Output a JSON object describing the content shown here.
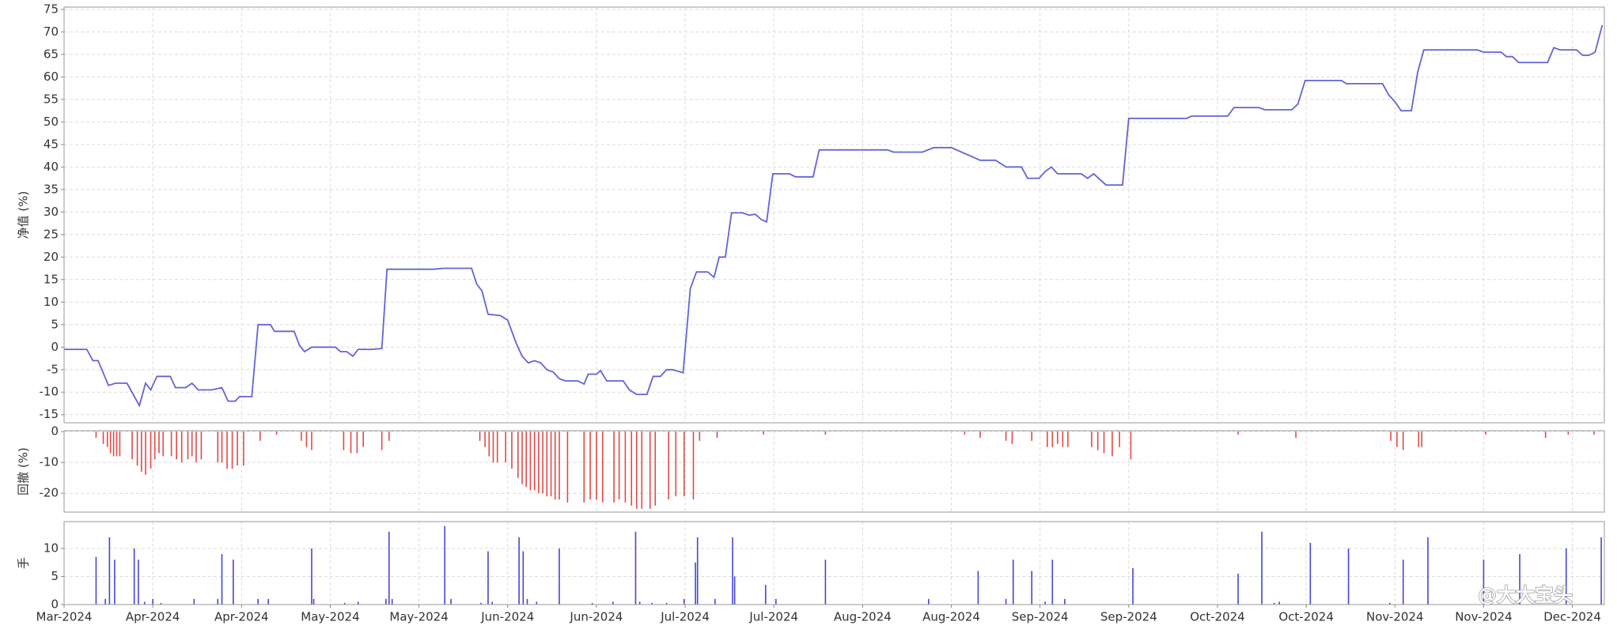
{
  "chart_data": [
    {
      "type": "line",
      "ylabel": "净值 (%)",
      "ylim": [
        -16.8,
        75.5
      ],
      "yticks": [
        -15,
        -10,
        -5,
        0,
        5,
        10,
        15,
        20,
        25,
        30,
        35,
        40,
        45,
        50,
        55,
        60,
        65,
        70,
        75
      ],
      "grid": true,
      "color": "#6363d8",
      "x": [
        0,
        22,
        28,
        33,
        43,
        50,
        61,
        73,
        79,
        84,
        90,
        103,
        108,
        118,
        124,
        130,
        143,
        153,
        159,
        166,
        170,
        182,
        188,
        200,
        204,
        223,
        228,
        233,
        240,
        263,
        268,
        274,
        280,
        285,
        298,
        308,
        313,
        358,
        368,
        395,
        400,
        405,
        411,
        423,
        430,
        438,
        444,
        450,
        456,
        462,
        468,
        474,
        480,
        486,
        498,
        504,
        508,
        516,
        520,
        526,
        542,
        548,
        555,
        565,
        571,
        578,
        584,
        590,
        600,
        607,
        613,
        624,
        630,
        635,
        641,
        647,
        658,
        664,
        670,
        676,
        681,
        687,
        703,
        709,
        726,
        732,
        798,
        804,
        832,
        843,
        860,
        878,
        888,
        903,
        913,
        928,
        934,
        945,
        951,
        957,
        963,
        986,
        992,
        998,
        1010,
        1026,
        1032,
        1088,
        1093,
        1128,
        1134,
        1158,
        1164,
        1190,
        1196,
        1203,
        1238,
        1243,
        1278,
        1284,
        1290,
        1296,
        1306,
        1312,
        1318,
        1370,
        1376,
        1393,
        1398,
        1404,
        1410,
        1438,
        1444,
        1450,
        1466,
        1472,
        1478,
        1484,
        1491
      ],
      "values": [
        -0.5,
        -0.5,
        -3,
        -3,
        -8.5,
        -8,
        -8,
        -13,
        -8,
        -9.5,
        -6.5,
        -6.5,
        -9,
        -9,
        -8,
        -9.5,
        -9.5,
        -9,
        -12,
        -12,
        -11,
        -11,
        5,
        5,
        3.5,
        3.5,
        0.5,
        -1,
        0,
        0,
        -1,
        -1,
        -2,
        -0.5,
        -0.5,
        -0.3,
        17.3,
        17.3,
        17.5,
        17.5,
        14,
        12.5,
        7.3,
        7,
        6,
        1,
        -2,
        -3.5,
        -3,
        -3.5,
        -5,
        -5.5,
        -7,
        -7.5,
        -7.5,
        -8.2,
        -6,
        -6,
        -5.2,
        -7.5,
        -7.5,
        -9.5,
        -10.5,
        -10.5,
        -6.5,
        -6.5,
        -5,
        -5,
        -5.7,
        13,
        16.7,
        16.7,
        15.5,
        20,
        20,
        29.8,
        29.8,
        29.3,
        29.5,
        28.3,
        27.8,
        38.5,
        38.5,
        37.8,
        37.8,
        43.8,
        43.8,
        43.3,
        43.3,
        44.3,
        44.3,
        42.5,
        41.5,
        41.5,
        40,
        40,
        37.5,
        37.5,
        39,
        40,
        38.5,
        38.5,
        37.5,
        38.5,
        36,
        36,
        50.8,
        50.8,
        51.3,
        51.3,
        53.2,
        53.2,
        52.7,
        52.7,
        54,
        59.2,
        59.2,
        58.5,
        58.5,
        56,
        54.5,
        52.5,
        52.5,
        61,
        66,
        66,
        65.5,
        65.5,
        64.5,
        64.5,
        63.2,
        63.2,
        66.5,
        66,
        66,
        64.8,
        64.8,
        65.5,
        71.5
      ]
    },
    {
      "type": "bar",
      "ylabel": "回撤 (%)",
      "ylim": [
        -26.1,
        0.3
      ],
      "yticks": [
        0,
        -10,
        -20
      ],
      "grid": true,
      "color": "#e04a4a",
      "x": [
        31,
        38,
        42,
        45,
        48,
        51,
        54,
        66,
        71,
        75,
        79,
        84,
        88,
        92,
        96,
        104,
        109,
        114,
        120,
        124,
        128,
        133,
        149,
        153,
        158,
        163,
        168,
        174,
        190,
        206,
        230,
        235,
        240,
        271,
        278,
        284,
        290,
        308,
        315,
        403,
        408,
        412,
        416,
        420,
        428,
        434,
        440,
        444,
        448,
        452,
        456,
        460,
        464,
        468,
        472,
        476,
        480,
        488,
        504,
        510,
        516,
        522,
        533,
        538,
        544,
        550,
        555,
        560,
        568,
        573,
        586,
        593,
        601,
        610,
        616,
        633,
        678,
        738,
        873,
        888,
        913,
        919,
        938,
        953,
        958,
        963,
        968,
        973,
        996,
        1002,
        1008,
        1016,
        1023,
        1034,
        1138,
        1194,
        1286,
        1292,
        1298,
        1313,
        1316,
        1378,
        1436,
        1458,
        1483
      ],
      "values": [
        -2,
        -4,
        -5,
        -7,
        -8,
        -8,
        -8,
        -9,
        -11,
        -13,
        -14,
        -12,
        -9,
        -7,
        -8,
        -8,
        -9,
        -10,
        -9,
        -8,
        -10,
        -9,
        -10,
        -10,
        -12,
        -12,
        -11,
        -11,
        -3,
        -1,
        -3,
        -5,
        -6,
        -6,
        -7,
        -7,
        -5,
        -6,
        -3,
        -3,
        -5,
        -8,
        -10,
        -10,
        -10,
        -12,
        -15,
        -17,
        -18,
        -19,
        -19,
        -20,
        -20,
        -21,
        -21,
        -22,
        -22,
        -23,
        -23,
        -22,
        -22,
        -23,
        -23,
        -22,
        -23,
        -24,
        -25,
        -25,
        -25,
        -24,
        -22,
        -21,
        -21,
        -22,
        -3,
        -2,
        -1,
        -1,
        -1,
        -2,
        -3,
        -4,
        -3,
        -5,
        -5,
        -4,
        -5,
        -5,
        -5,
        -6,
        -7,
        -8,
        -5,
        -9,
        -1,
        -2,
        -3,
        -5,
        -6,
        -5,
        -5,
        -1,
        -2,
        -1,
        -1
      ]
    },
    {
      "type": "bar",
      "ylabel": "手",
      "ylim": [
        0,
        14.8
      ],
      "yticks": [
        0,
        5,
        10
      ],
      "grid": true,
      "color": "#4646d6",
      "x": [
        31,
        40,
        44,
        49,
        68,
        72,
        78,
        86,
        94,
        126,
        149,
        153,
        164,
        188,
        198,
        240,
        242,
        272,
        285,
        312,
        315,
        318,
        369,
        375,
        404,
        411,
        415,
        441,
        445,
        449,
        458,
        480,
        512,
        532,
        554,
        558,
        570,
        584,
        601,
        612,
        614,
        631,
        648,
        650,
        680,
        690,
        738,
        838,
        886,
        913,
        920,
        938,
        951,
        958,
        970,
        1036,
        1138,
        1161,
        1173,
        1178,
        1208,
        1245,
        1285,
        1298,
        1322,
        1376,
        1411,
        1456,
        1490
      ],
      "values": [
        8.5,
        1,
        12,
        8,
        10,
        8,
        0.5,
        1,
        0.3,
        1,
        1,
        9,
        8,
        1,
        1,
        10,
        1,
        0.3,
        0.5,
        1,
        13,
        1,
        14,
        1,
        0.3,
        9.5,
        0.5,
        12,
        9.5,
        1,
        0.5,
        10,
        0.3,
        0.5,
        13,
        0.5,
        0.3,
        0.3,
        1,
        7.5,
        12,
        1,
        12,
        5,
        3.5,
        1,
        8,
        1,
        6,
        1,
        8,
        6,
        0.5,
        8,
        1,
        6.5,
        5.5,
        13,
        0.3,
        0.5,
        11,
        10,
        0.3,
        8,
        12,
        8,
        9,
        10,
        12
      ],
      "xlim": [
        0,
        1493
      ],
      "xticks": [
        {
          "value": 0,
          "label": "Mar-2024"
        },
        {
          "value": 86,
          "label": "Apr-2024"
        },
        {
          "value": 172,
          "label": "Apr-2024"
        },
        {
          "value": 258,
          "label": "May-2024"
        },
        {
          "value": 344,
          "label": "May-2024"
        },
        {
          "value": 430,
          "label": "Jun-2024"
        },
        {
          "value": 516,
          "label": "Jun-2024"
        },
        {
          "value": 602,
          "label": "Jul-2024"
        },
        {
          "value": 688,
          "label": "Jul-2024"
        },
        {
          "value": 774,
          "label": "Aug-2024"
        },
        {
          "value": 860,
          "label": "Aug-2024"
        },
        {
          "value": 946,
          "label": "Sep-2024"
        },
        {
          "value": 1032,
          "label": "Sep-2024"
        },
        {
          "value": 1118,
          "label": "Oct-2024"
        },
        {
          "value": 1204,
          "label": "Oct-2024"
        },
        {
          "value": 1290,
          "label": "Nov-2024"
        },
        {
          "value": 1376,
          "label": "Nov-2024"
        },
        {
          "value": 1462,
          "label": "Dec-2024"
        }
      ]
    }
  ],
  "watermark": "@大大宝头"
}
